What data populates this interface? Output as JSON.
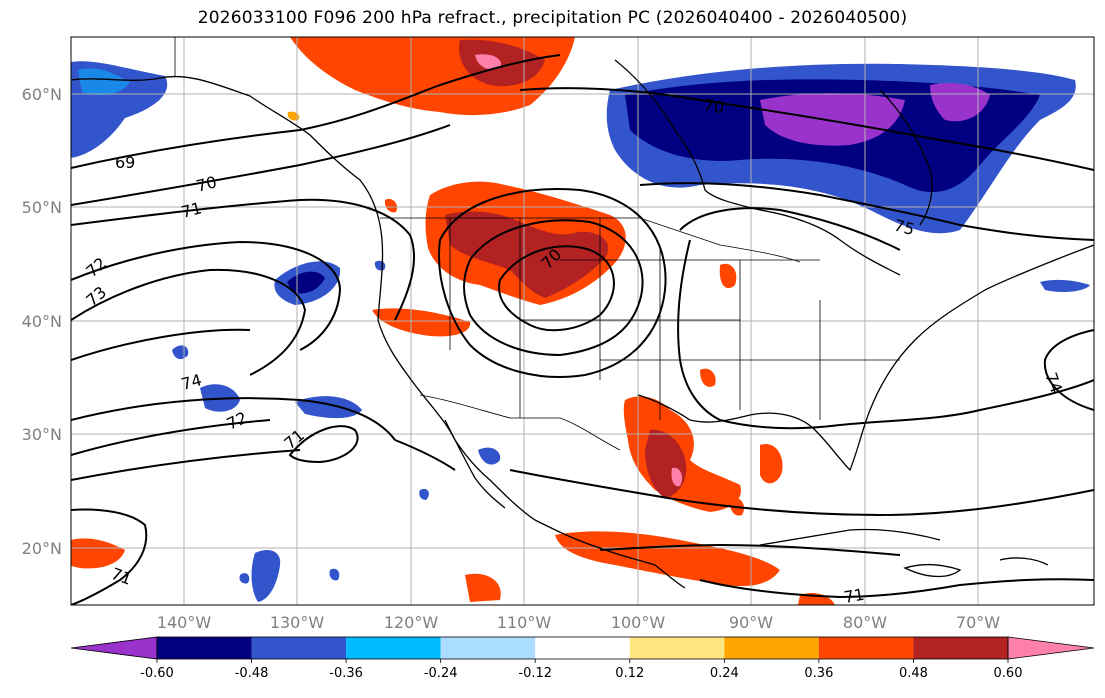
{
  "title": "2026033100 F096 200 hPa refract., precipitation PC (2026040400 - 2026040500)",
  "lat_labels": [
    "60°N",
    "50°N",
    "40°N",
    "30°N",
    "20°N"
  ],
  "lon_labels": [
    "140°W",
    "130°W",
    "120°W",
    "110°W",
    "100°W",
    "90°W",
    "80°W",
    "70°W"
  ],
  "contour_labels": [
    "69",
    "70",
    "71",
    "72",
    "73",
    "74",
    "72",
    "71",
    "70",
    "75",
    "74",
    "71",
    "71",
    "70"
  ],
  "colorbar": {
    "colors": [
      "#9933cc",
      "#000080",
      "#3355cc",
      "#00bbff",
      "#aaddff",
      "#ffffff",
      "#ffe680",
      "#ffa500",
      "#ff4500",
      "#b22222",
      "#ff80aa"
    ],
    "ticks": [
      "-0.60",
      "-0.48",
      "-0.36",
      "-0.24",
      "-0.12",
      "0.12",
      "0.24",
      "0.36",
      "0.48",
      "0.60"
    ]
  }
}
